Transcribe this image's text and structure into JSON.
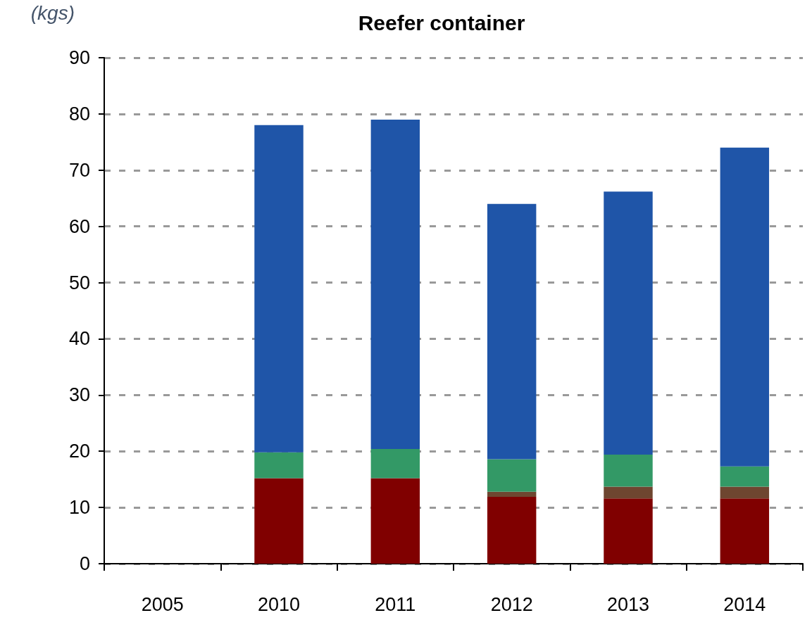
{
  "chart_data": {
    "type": "bar",
    "title": "Reefer container",
    "ylabel": "(kgs)",
    "categories": [
      "2005",
      "2010",
      "2011",
      "2012",
      "2013",
      "2014"
    ],
    "series": [
      {
        "color": "#800000",
        "values": [
          null,
          15.2,
          15.2,
          11.9,
          11.6,
          11.6
        ]
      },
      {
        "color": "#6e4630",
        "values": [
          null,
          null,
          null,
          0.9,
          2.1,
          2.1
        ]
      },
      {
        "color": "#339966",
        "values": [
          null,
          4.6,
          5.2,
          5.8,
          5.7,
          3.6
        ]
      },
      {
        "color": "#1f55a8",
        "values": [
          null,
          58.2,
          58.6,
          45.4,
          46.8,
          56.7
        ]
      }
    ],
    "stacked": true,
    "ylim": [
      0,
      90
    ],
    "yticks": [
      0,
      10,
      20,
      30,
      40,
      50,
      60,
      70,
      80,
      90
    ],
    "grid": "y"
  }
}
